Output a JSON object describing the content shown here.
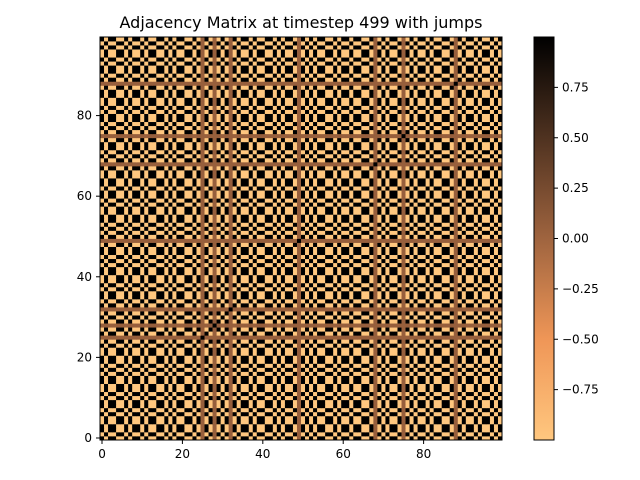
{
  "chart_data": {
    "type": "heatmap",
    "title": "Adjacency Matrix at timestep 499 with jumps",
    "xlabel": "",
    "ylabel": "",
    "matrix_size": 100,
    "origin": "lower",
    "xlim": [
      -0.5,
      99.5
    ],
    "ylim": [
      -0.5,
      99.5
    ],
    "x_ticks": [
      0,
      20,
      40,
      60,
      80
    ],
    "y_ticks": [
      0,
      20,
      40,
      60,
      80
    ],
    "colormap": "copper_r",
    "color_min": -1.0,
    "color_max": 1.0,
    "colorbar_ticks": [
      0.75,
      0.5,
      0.25,
      0.0,
      -0.25,
      -0.5,
      -0.75
    ],
    "colorbar_tick_labels": [
      "0.75",
      "0.50",
      "0.25",
      "0.00",
      "−0.25",
      "−0.50",
      "−0.75"
    ],
    "grid": false,
    "description_of_values": "Symmetric matrix of values in [-1, 1]; visible structure is a checkerboard/plaid pattern of strong positive (dark) and negative (light orange) entries with medium-brown bands.",
    "sample_row_signs": [
      1,
      -1,
      1,
      1,
      -1,
      -1,
      1,
      -1,
      1,
      1,
      -1,
      1,
      -1,
      -1,
      1,
      1,
      -1,
      1,
      -1,
      1,
      1,
      -1,
      -1,
      1,
      -1,
      0,
      1,
      -1,
      0,
      -1,
      1,
      -1,
      0,
      1,
      -1,
      1,
      1,
      -1,
      1,
      -1,
      -1,
      1,
      1,
      -1,
      1,
      -1,
      1,
      1,
      -1,
      0,
      1,
      -1,
      1,
      -1,
      1,
      1,
      -1,
      -1,
      1,
      -1,
      1,
      1,
      -1,
      1,
      1,
      -1,
      -1,
      1,
      0,
      -1,
      1,
      -1,
      1,
      1,
      -1,
      0,
      -1,
      1,
      -1,
      1,
      1,
      -1,
      1,
      -1,
      -1,
      1,
      1,
      -1,
      0,
      1,
      -1,
      1,
      1,
      -1,
      1,
      -1,
      -1,
      1,
      -1,
      1
    ]
  }
}
